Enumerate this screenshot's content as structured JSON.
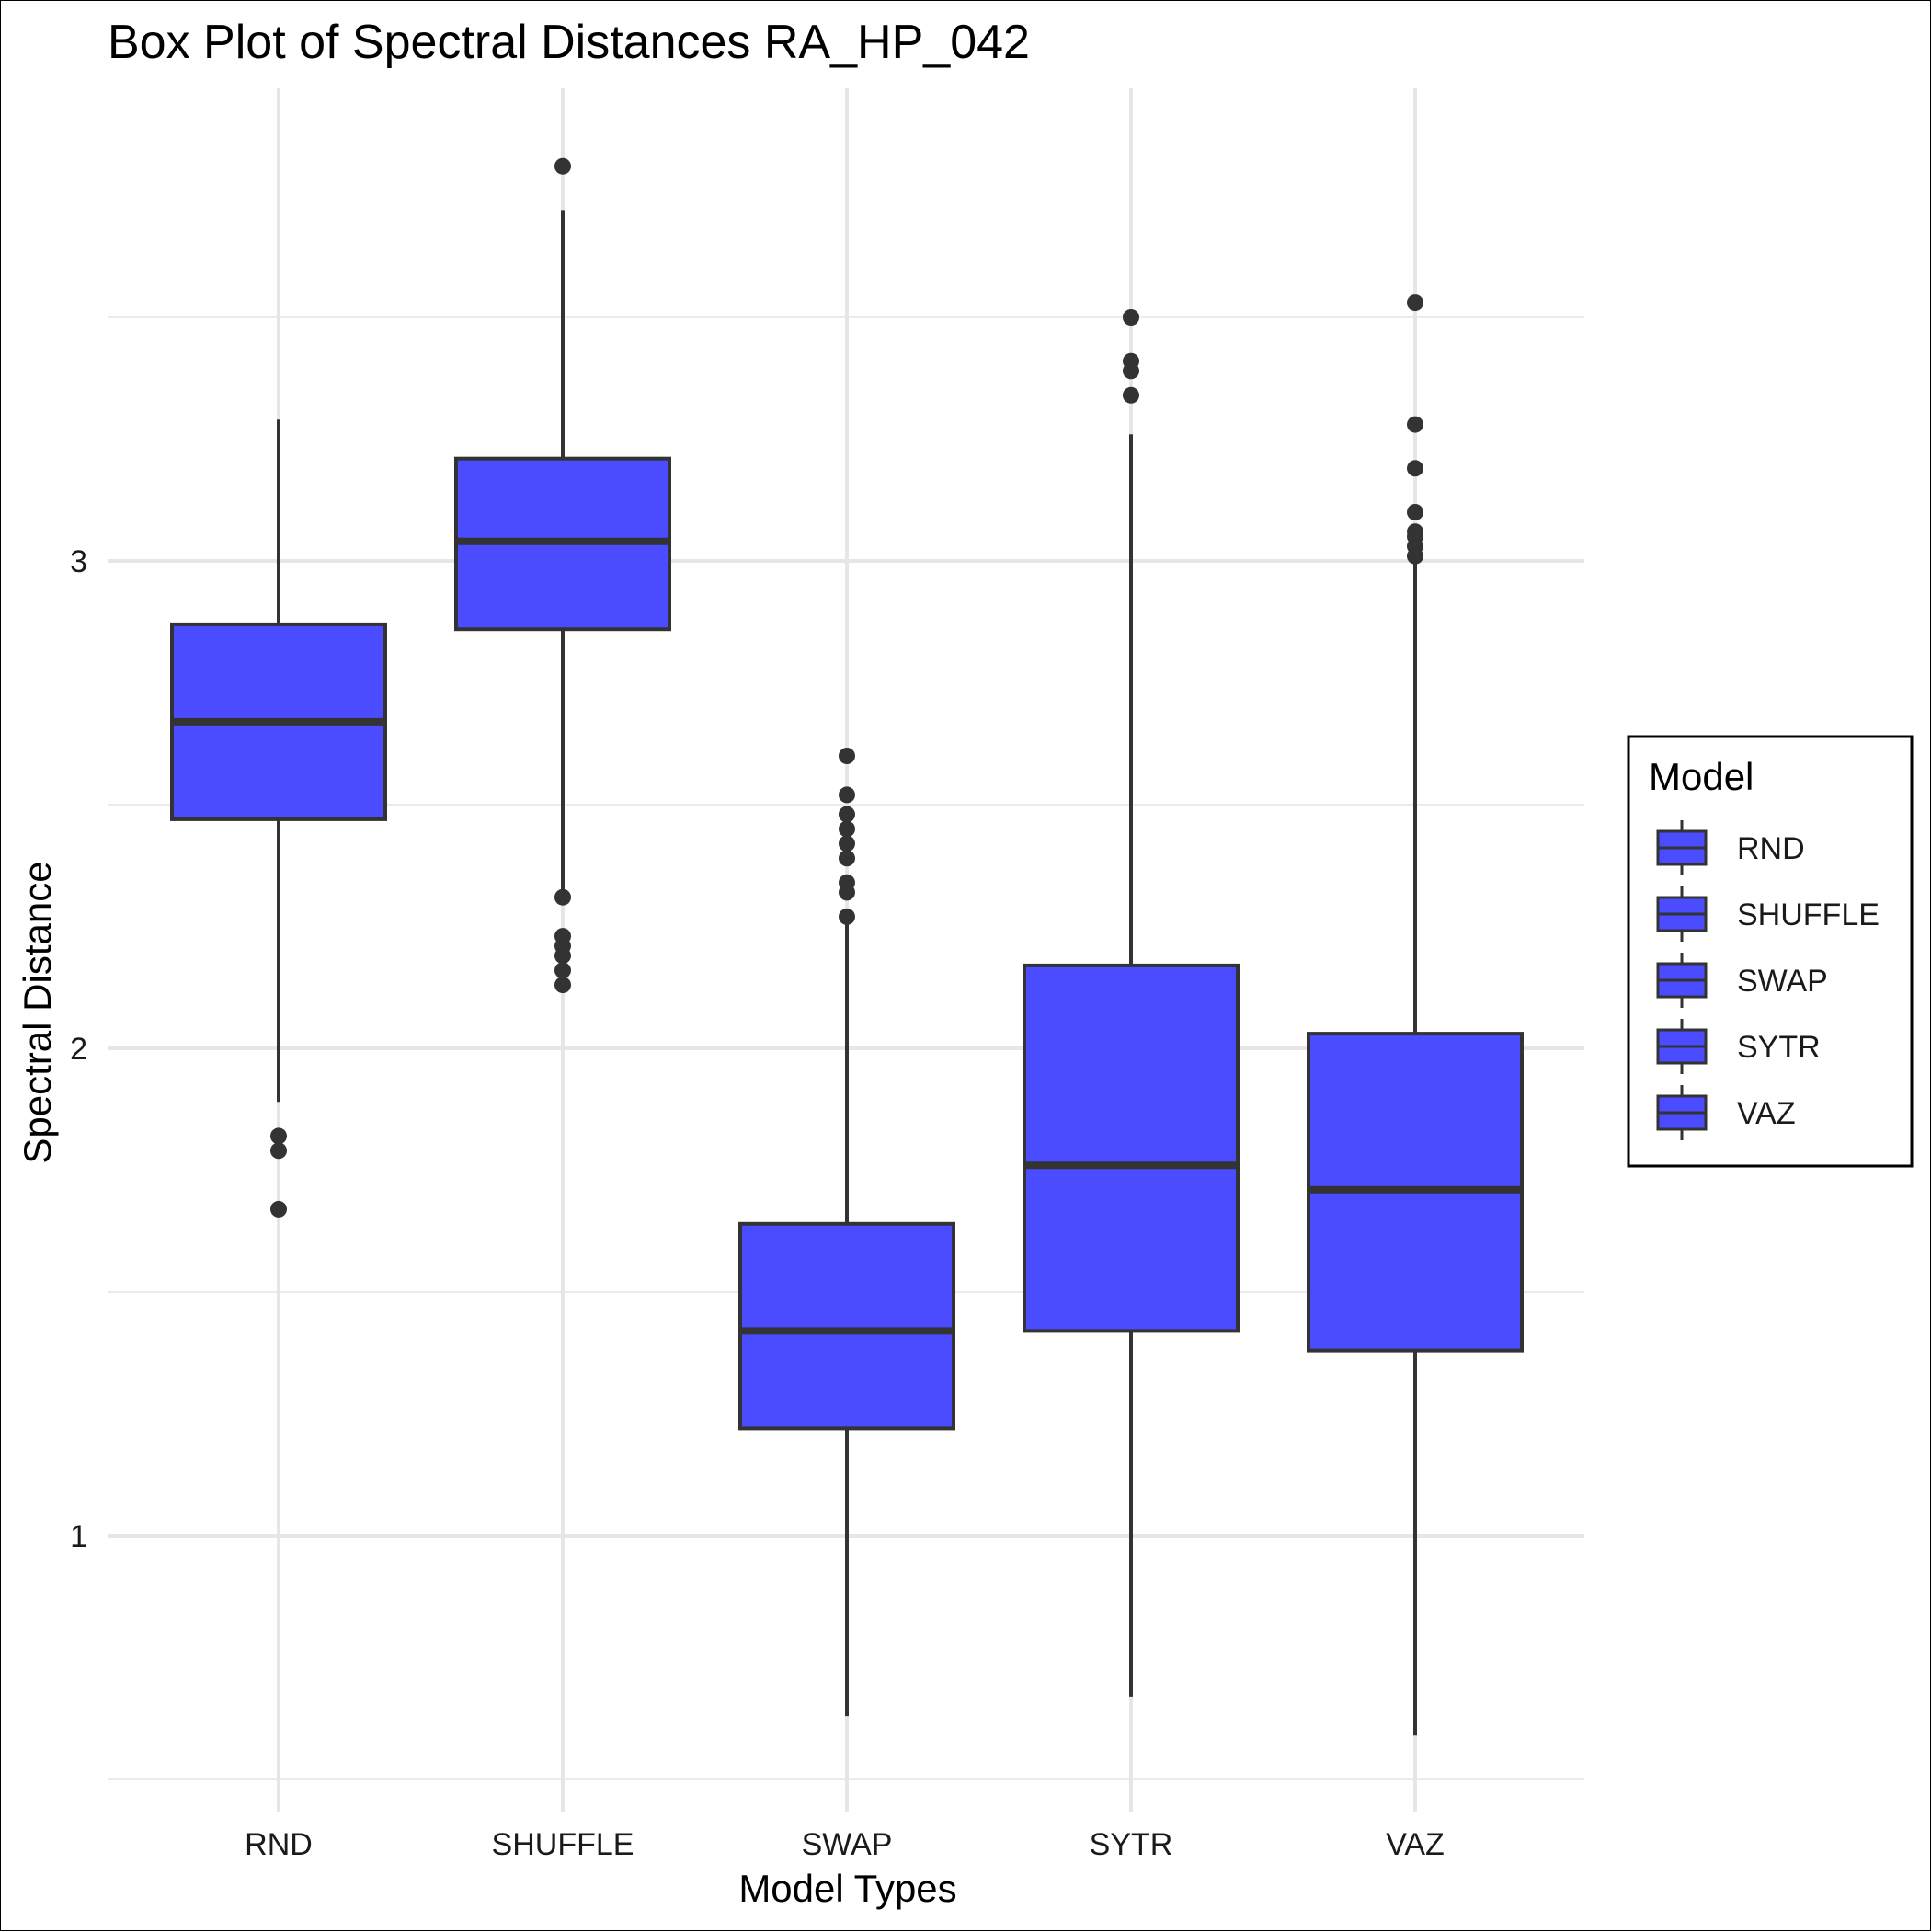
{
  "chart_data": {
    "type": "box",
    "title": "Box Plot of Spectral Distances RA_HP_042",
    "xlabel": "Model Types",
    "ylabel": "Spectral Distance",
    "ylim": [
      0.5,
      3.5
    ],
    "yticks": [
      1,
      2,
      3
    ],
    "grid": true,
    "fill_color": "#4b4bff",
    "outline_color": "#333333",
    "legend": {
      "title": "Model",
      "placement": "right",
      "entries": [
        "RND",
        "SHUFFLE",
        "SWAP",
        "SYTR",
        "VAZ"
      ]
    },
    "categories": [
      "RND",
      "SHUFFLE",
      "SWAP",
      "SYTR",
      "VAZ"
    ],
    "boxes": [
      {
        "category": "RND",
        "whisker_low": 1.89,
        "q1": 2.47,
        "median": 2.67,
        "q3": 2.87,
        "whisker_high": 3.29,
        "outliers": [
          1.82,
          1.79,
          1.67
        ]
      },
      {
        "category": "SHUFFLE",
        "whisker_low": 2.31,
        "q1": 2.86,
        "median": 3.04,
        "q3": 3.21,
        "whisker_high": 3.72,
        "outliers": [
          3.81,
          2.31,
          2.23,
          2.21,
          2.19,
          2.16,
          2.13
        ]
      },
      {
        "category": "SWAP",
        "whisker_low": 0.63,
        "q1": 1.22,
        "median": 1.42,
        "q3": 1.64,
        "whisker_high": 2.27,
        "outliers": [
          2.6,
          2.52,
          2.48,
          2.45,
          2.42,
          2.39,
          2.34,
          2.32,
          2.27
        ]
      },
      {
        "category": "SYTR",
        "whisker_low": 0.67,
        "q1": 1.42,
        "median": 1.76,
        "q3": 2.17,
        "whisker_high": 3.26,
        "outliers": [
          3.5,
          3.41,
          3.39,
          3.34
        ]
      },
      {
        "category": "VAZ",
        "whisker_low": 0.59,
        "q1": 1.38,
        "median": 1.71,
        "q3": 2.03,
        "whisker_high": 3.0,
        "outliers": [
          3.53,
          3.28,
          3.19,
          3.1,
          3.06,
          3.05,
          3.03,
          3.01
        ]
      }
    ]
  }
}
